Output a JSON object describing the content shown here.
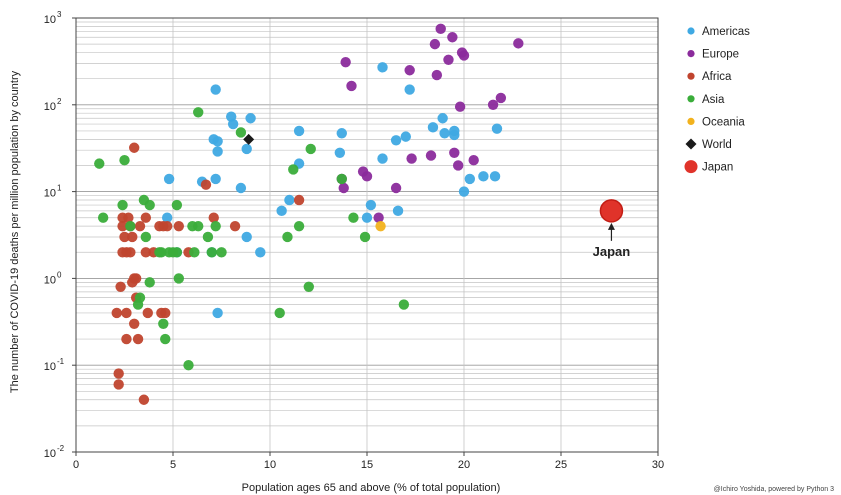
{
  "chart_data": {
    "type": "scatter",
    "title": "",
    "xlabel": "Population ages 65 and above (% of total population)",
    "ylabel": "The number of COVID-19 deaths per million population by country",
    "xlim": [
      0,
      30
    ],
    "ylim": [
      0.01,
      1000
    ],
    "yscale": "log",
    "grid": true,
    "legend_position": "right",
    "x_ticks": [
      "0",
      "5",
      "10",
      "15",
      "20",
      "25",
      "30"
    ],
    "y_ticks": [
      {
        "value": 0.01,
        "base": "10",
        "exp": "-2"
      },
      {
        "value": 0.1,
        "base": "10",
        "exp": "-1"
      },
      {
        "value": 1,
        "base": "10",
        "exp": "0"
      },
      {
        "value": 10,
        "base": "10",
        "exp": "1"
      },
      {
        "value": 100,
        "base": "10",
        "exp": "2"
      },
      {
        "value": 1000,
        "base": "10",
        "exp": "3"
      }
    ],
    "annotation": {
      "text": "Japan",
      "x": 27.6,
      "y": 6
    },
    "credit": "@Ichiro Yoshida, powered by Python 3",
    "series": [
      {
        "name": "Americas",
        "color": "#3fa9e3",
        "marker": "circle",
        "points": [
          [
            4.7,
            5
          ],
          [
            4.8,
            14
          ],
          [
            5.2,
            2
          ],
          [
            6.5,
            13
          ],
          [
            7,
            2
          ],
          [
            7.2,
            150
          ],
          [
            7.1,
            40
          ],
          [
            7.3,
            38
          ],
          [
            7.3,
            29
          ],
          [
            7.2,
            14
          ],
          [
            7.3,
            0.4
          ],
          [
            8,
            73
          ],
          [
            8.1,
            60
          ],
          [
            8.5,
            11
          ],
          [
            8.8,
            31
          ],
          [
            8.8,
            3
          ],
          [
            9,
            70
          ],
          [
            9.5,
            2
          ],
          [
            10.6,
            6
          ],
          [
            11,
            8
          ],
          [
            11.5,
            50
          ],
          [
            11.5,
            21
          ],
          [
            13.7,
            47
          ],
          [
            13.6,
            28
          ],
          [
            15,
            5
          ],
          [
            15.2,
            7
          ],
          [
            15.8,
            270
          ],
          [
            15.8,
            24
          ],
          [
            16.6,
            6
          ],
          [
            16.5,
            39
          ],
          [
            17,
            43
          ],
          [
            17.2,
            150
          ],
          [
            18.4,
            55
          ],
          [
            18.9,
            70
          ],
          [
            19,
            47
          ],
          [
            19.5,
            50
          ],
          [
            19.5,
            45
          ],
          [
            20,
            10
          ],
          [
            20.3,
            14
          ],
          [
            21,
            15
          ],
          [
            21.6,
            15
          ],
          [
            21.7,
            53
          ]
        ]
      },
      {
        "name": "Europe",
        "color": "#8b2b9c",
        "marker": "circle",
        "points": [
          [
            13.9,
            310
          ],
          [
            14.2,
            165
          ],
          [
            14.8,
            17
          ],
          [
            15,
            15
          ],
          [
            13.7,
            14
          ],
          [
            13.8,
            11
          ],
          [
            15.6,
            5
          ],
          [
            16.5,
            11
          ],
          [
            17.2,
            250
          ],
          [
            17.3,
            24
          ],
          [
            18.3,
            26
          ],
          [
            18.5,
            500
          ],
          [
            18.6,
            220
          ],
          [
            18.8,
            750
          ],
          [
            19.2,
            330
          ],
          [
            19.4,
            600
          ],
          [
            19.5,
            28
          ],
          [
            19.7,
            20
          ],
          [
            19.8,
            95
          ],
          [
            19.9,
            400
          ],
          [
            20,
            370
          ],
          [
            20.5,
            23
          ],
          [
            21.5,
            100
          ],
          [
            21.9,
            120
          ],
          [
            22.8,
            510
          ]
        ]
      },
      {
        "name": "Africa",
        "color": "#c0442e",
        "marker": "circle",
        "points": [
          [
            2.1,
            0.4
          ],
          [
            2.2,
            0.08
          ],
          [
            2.2,
            0.06
          ],
          [
            2.3,
            0.8
          ],
          [
            2.4,
            5
          ],
          [
            2.4,
            4
          ],
          [
            2.4,
            2
          ],
          [
            2.5,
            3
          ],
          [
            2.6,
            2
          ],
          [
            2.6,
            0.4
          ],
          [
            2.6,
            0.2
          ],
          [
            2.7,
            5
          ],
          [
            2.8,
            4
          ],
          [
            2.8,
            2
          ],
          [
            2.9,
            0.9
          ],
          [
            2.9,
            3
          ],
          [
            3,
            1
          ],
          [
            3,
            0.3
          ],
          [
            3,
            32
          ],
          [
            3.1,
            0.6
          ],
          [
            3.1,
            1
          ],
          [
            3.2,
            0.2
          ],
          [
            3.3,
            4
          ],
          [
            3.5,
            0.04
          ],
          [
            3.6,
            5
          ],
          [
            3.6,
            2
          ],
          [
            3.7,
            0.4
          ],
          [
            4,
            2
          ],
          [
            4.3,
            4
          ],
          [
            4.4,
            0.4
          ],
          [
            4.5,
            4
          ],
          [
            4.6,
            0.4
          ],
          [
            4.7,
            4
          ],
          [
            5.3,
            4
          ],
          [
            5.8,
            2
          ],
          [
            6.7,
            12
          ],
          [
            7.1,
            5
          ],
          [
            8.2,
            4
          ],
          [
            11.5,
            8
          ]
        ]
      },
      {
        "name": "Asia",
        "color": "#3aad3a",
        "marker": "circle",
        "points": [
          [
            1.2,
            21
          ],
          [
            1.4,
            5
          ],
          [
            2.4,
            7
          ],
          [
            2.5,
            23
          ],
          [
            2.8,
            4
          ],
          [
            3.2,
            0.5
          ],
          [
            3.3,
            0.6
          ],
          [
            3.5,
            8
          ],
          [
            3.6,
            3
          ],
          [
            3.8,
            7
          ],
          [
            3.8,
            0.9
          ],
          [
            4.3,
            2
          ],
          [
            4.4,
            2
          ],
          [
            4.5,
            0.3
          ],
          [
            4.6,
            0.2
          ],
          [
            4.8,
            2
          ],
          [
            5,
            2
          ],
          [
            5.2,
            7
          ],
          [
            5.2,
            2
          ],
          [
            5.3,
            1
          ],
          [
            5.8,
            0.1
          ],
          [
            6,
            4
          ],
          [
            6.1,
            2
          ],
          [
            6.3,
            4
          ],
          [
            6.3,
            82
          ],
          [
            6.8,
            3
          ],
          [
            7,
            2
          ],
          [
            7.2,
            4
          ],
          [
            7.5,
            2
          ],
          [
            8.5,
            48
          ],
          [
            10.5,
            0.4
          ],
          [
            10.9,
            3
          ],
          [
            11.2,
            18
          ],
          [
            11.5,
            4
          ],
          [
            12,
            0.8
          ],
          [
            12.1,
            31
          ],
          [
            13.7,
            14
          ],
          [
            14.3,
            5
          ],
          [
            14.9,
            3
          ],
          [
            16.9,
            0.5
          ]
        ]
      },
      {
        "name": "Oceania",
        "color": "#f2b21d",
        "marker": "circle",
        "points": [
          [
            15.7,
            4
          ]
        ]
      },
      {
        "name": "World",
        "color": "#1a1a1a",
        "marker": "diamond",
        "points": [
          [
            8.9,
            40
          ]
        ]
      },
      {
        "name": "Japan",
        "color": "#e0332a",
        "marker": "big-circle",
        "points": [
          [
            27.6,
            6
          ]
        ]
      }
    ]
  }
}
